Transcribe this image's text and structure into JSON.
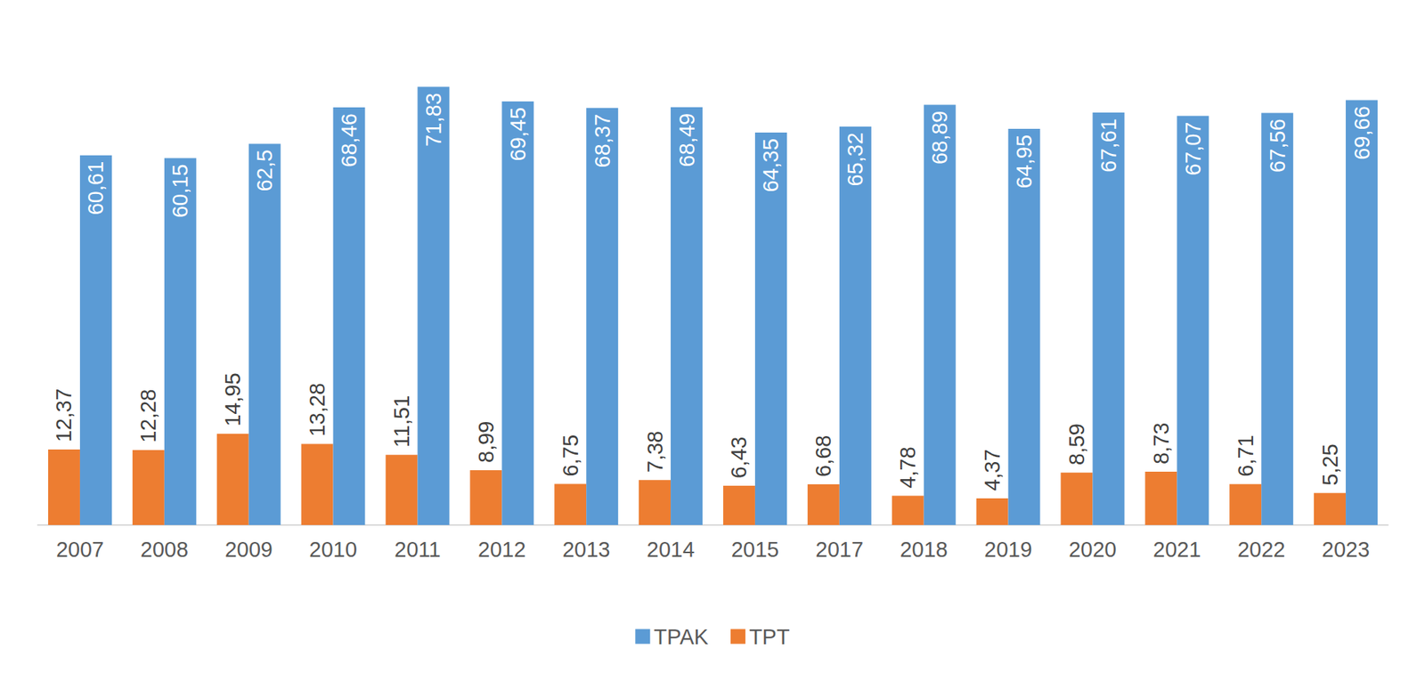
{
  "chart_data": {
    "type": "bar",
    "categories": [
      "2007",
      "2008",
      "2009",
      "2010",
      "2011",
      "2012",
      "2013",
      "2014",
      "2015",
      "2017",
      "2018",
      "2019",
      "2020",
      "2021",
      "2022",
      "2023"
    ],
    "series": [
      {
        "name": "TPAK",
        "color": "#5b9bd5",
        "values": [
          60.61,
          60.15,
          62.5,
          68.46,
          71.83,
          69.45,
          68.37,
          68.49,
          64.35,
          65.32,
          68.89,
          64.95,
          67.61,
          67.07,
          67.56,
          69.66
        ],
        "value_labels": [
          "60,61",
          "60,15",
          "62,5",
          "68,46",
          "71,83",
          "69,45",
          "68,37",
          "68,49",
          "64,35",
          "65,32",
          "68,89",
          "64,95",
          "67,61",
          "67,07",
          "67,56",
          "69,66"
        ]
      },
      {
        "name": "TPT",
        "color": "#ed7d31",
        "values": [
          12.37,
          12.28,
          14.95,
          13.28,
          11.51,
          8.99,
          6.75,
          7.38,
          6.43,
          6.68,
          4.78,
          4.37,
          8.59,
          8.73,
          6.71,
          5.25
        ],
        "value_labels": [
          "12,37",
          "12,28",
          "14,95",
          "13,28",
          "11,51",
          "8,99",
          "6,75",
          "7,38",
          "6,43",
          "6,68",
          "4,78",
          "4,37",
          "8,59",
          "8,73",
          "6,71",
          "5,25"
        ]
      }
    ],
    "ylim": [
      0,
      80
    ],
    "grid": false,
    "legend": "bottom",
    "data_labels": true,
    "tick_labels": "x"
  }
}
